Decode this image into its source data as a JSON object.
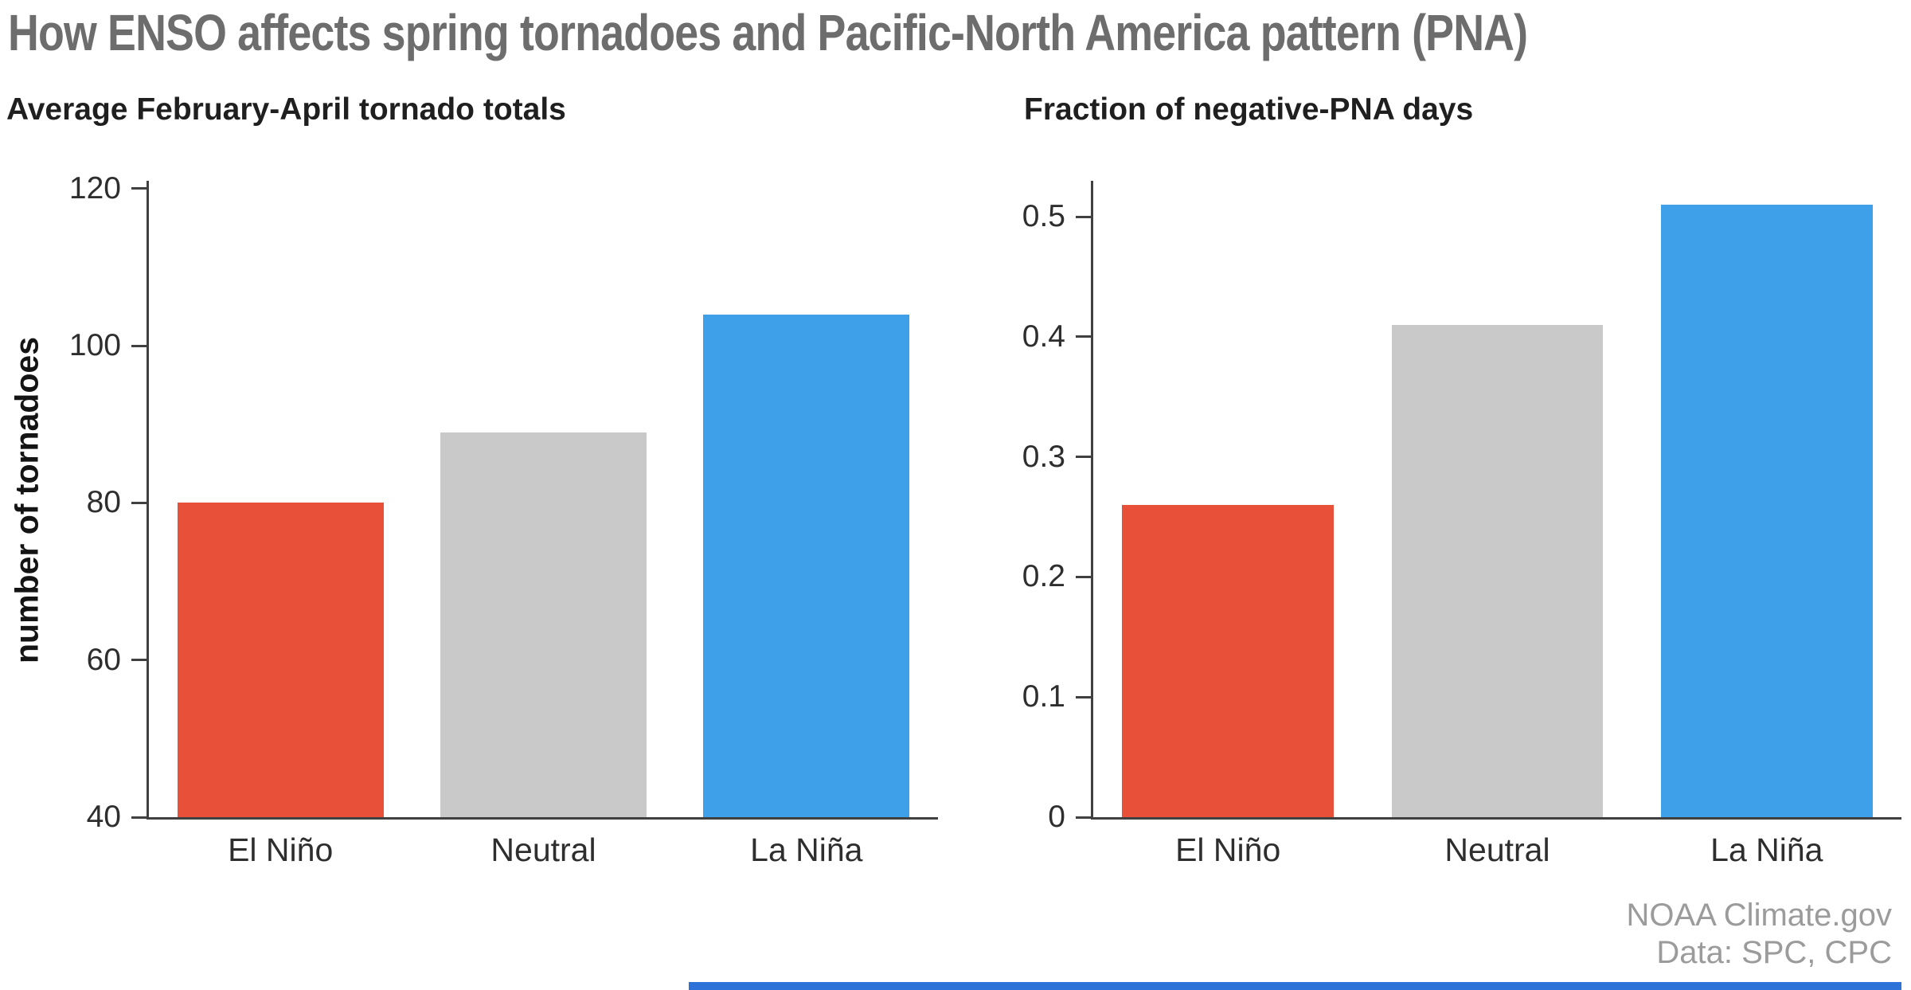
{
  "page": {
    "title": "How ENSO affects spring tornadoes and Pacific-North America pattern (PNA)",
    "attribution_line1": "NOAA Climate.gov",
    "attribution_line2": "Data: SPC, CPC"
  },
  "colors": {
    "el_nino_red": "#e8503a",
    "neutral_gray": "#c9c9c9",
    "la_nina_blue": "#3da0e8",
    "title_gray": "#6d6d6e",
    "axis": "#404040",
    "footer_strip_blue": "#2d72d9"
  },
  "chart_data": [
    {
      "type": "bar",
      "title": "Average February-April tornado totals",
      "xlabel": "",
      "ylabel": "number of tornadoes",
      "categories": [
        "El Niño",
        "Neutral",
        "La Niña"
      ],
      "values": [
        80,
        89,
        104
      ],
      "colors": [
        "#e8503a",
        "#c9c9c9",
        "#3da0e8"
      ],
      "ylim": [
        40,
        121
      ],
      "yticks": [
        40,
        60,
        80,
        100,
        120
      ],
      "ytick_labels": [
        "40",
        "60",
        "80",
        "100",
        "120"
      ],
      "grid": false,
      "legend": false
    },
    {
      "type": "bar",
      "title": "Fraction of negative-PNA days",
      "xlabel": "",
      "ylabel": "",
      "categories": [
        "El Niño",
        "Neutral",
        "La Niña"
      ],
      "values": [
        0.26,
        0.41,
        0.51
      ],
      "colors": [
        "#e8503a",
        "#c9c9c9",
        "#3da0e8"
      ],
      "ylim": [
        0,
        0.53
      ],
      "yticks": [
        0,
        0.1,
        0.2,
        0.3,
        0.4,
        0.5
      ],
      "ytick_labels": [
        "0",
        "0.1",
        "0.2",
        "0.3",
        "0.4",
        "0.5"
      ],
      "grid": false,
      "legend": false
    }
  ]
}
